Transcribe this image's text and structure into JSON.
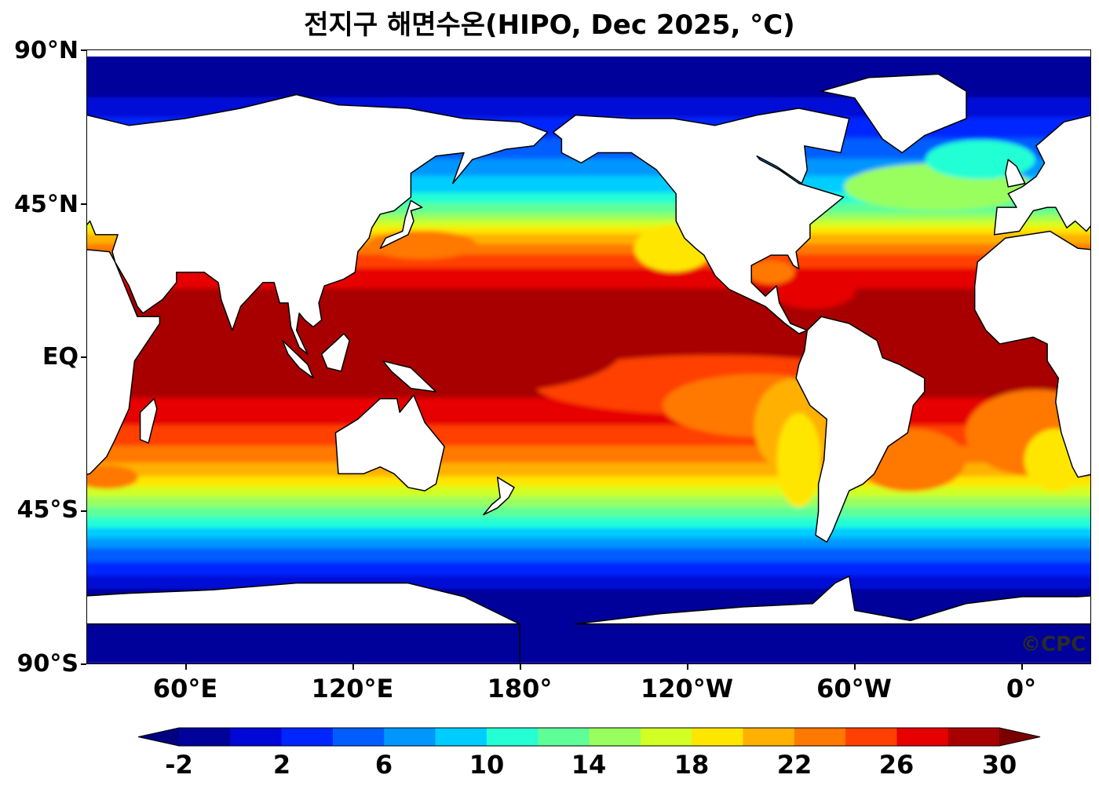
{
  "title": "전지구 해면수온(HIPO, Dec 2025, °C)",
  "credit": "©CPC",
  "lat_labels": [
    "90°N",
    "45°N",
    "EQ",
    "45°S",
    "90°S"
  ],
  "lon_labels": [
    "60°E",
    "120°E",
    "180°",
    "120°W",
    "60°W",
    "0°"
  ],
  "colorbar": {
    "tick_labels": [
      "-2",
      "2",
      "6",
      "10",
      "14",
      "18",
      "22",
      "26",
      "30"
    ],
    "levels": [
      -2,
      0,
      2,
      4,
      6,
      8,
      10,
      12,
      14,
      16,
      18,
      20,
      22,
      24,
      26,
      28,
      30
    ],
    "colors": [
      "#00039a",
      "#0007d6",
      "#0025ff",
      "#005dff",
      "#0096ff",
      "#00cdff",
      "#24ffd4",
      "#5eff98",
      "#99ff5e",
      "#d2ff24",
      "#ffe600",
      "#ffb000",
      "#ff7800",
      "#ff4000",
      "#e60000",
      "#a80000"
    ],
    "under_color": "#000080",
    "over_color": "#7a0000",
    "extend": "both"
  },
  "land_color": "#ffffff",
  "coastline_color": "#000000"
}
